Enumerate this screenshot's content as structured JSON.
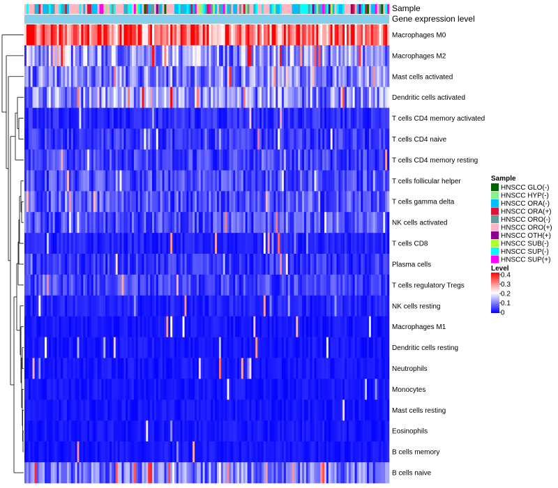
{
  "chart_data": {
    "type": "heatmap",
    "title": "",
    "annotation_tracks": [
      "Sample",
      "Gene expression level"
    ],
    "gene_expression_color": "#87CEEB",
    "rows": [
      "Macrophages M0",
      "Macrophages M2",
      "Mast cells activated",
      "Dendritic cells activated",
      "T cells CD4 memory activated",
      "T cells CD4 naive",
      "T cells CD4 memory resting",
      "T cells follicular helper",
      "T cells gamma delta",
      "NK cells activated",
      "T cells CD8",
      "Plasma cells",
      "T cells regulatory  Tregs",
      "NK cells resting",
      "Macrophages M1",
      "Dendritic cells resting",
      "Neutrophils",
      "Monocytes",
      "Mast cells resting",
      "Eosinophils",
      "B cells memory",
      "B cells naive"
    ],
    "row_mean_levels": [
      0.32,
      0.12,
      0.1,
      0.11,
      0.04,
      0.05,
      0.06,
      0.07,
      0.08,
      0.07,
      0.03,
      0.05,
      0.06,
      0.03,
      0.02,
      0.02,
      0.02,
      0.02,
      0.02,
      0.02,
      0.02,
      0.09
    ],
    "n_samples": 180,
    "sample_legend": {
      "title": "Sample",
      "items": [
        {
          "label": "HNSCC GLO(-)",
          "color": "#006400"
        },
        {
          "label": "HNSCC HYP(-)",
          "color": "#90EE90"
        },
        {
          "label": "HNSCC ORA(-)",
          "color": "#00BFFF"
        },
        {
          "label": "HNSCC ORA(+)",
          "color": "#DC143C"
        },
        {
          "label": "HNSCC ORO(-)",
          "color": "#5F9EA0"
        },
        {
          "label": "HNSCC ORO(+)",
          "color": "#FFB6C1"
        },
        {
          "label": "HNSCC OTH(+)",
          "color": "#8B008B"
        },
        {
          "label": "HNSCC SUB(-)",
          "color": "#ADFF2F"
        },
        {
          "label": "HNSCC SUP(-)",
          "color": "#00FFFF"
        },
        {
          "label": "HNSCC SUP(+)",
          "color": "#FF00FF"
        }
      ]
    },
    "level_legend": {
      "title": "Level",
      "ticks": [
        "0.4",
        "0.3",
        "0.2",
        "0.1",
        "0"
      ],
      "range": [
        0,
        0.4
      ],
      "colors": [
        "#0000FF",
        "#FFFFFF",
        "#FF0000"
      ]
    }
  }
}
